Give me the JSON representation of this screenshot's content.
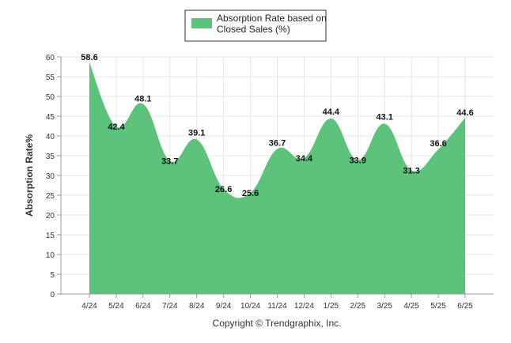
{
  "chart_data": {
    "type": "area",
    "categories": [
      "4/24",
      "5/24",
      "6/24",
      "7/24",
      "8/24",
      "9/24",
      "10/24",
      "11/24",
      "12/24",
      "1/25",
      "2/25",
      "3/25",
      "4/25",
      "5/25",
      "6/25"
    ],
    "series": [
      {
        "name": "Absorption Rate based on Closed Sales (%)",
        "legend_lines": [
          "Absorption Rate based on",
          "Closed Sales (%)"
        ],
        "values": [
          58.6,
          42.4,
          48.1,
          33.7,
          39.1,
          26.6,
          25.6,
          36.7,
          34.4,
          44.4,
          33.9,
          43.1,
          31.3,
          36.6,
          44.6
        ],
        "labels": [
          "58.6",
          "42.4",
          "48.1",
          "33.7",
          "39.1",
          "26.6",
          "25.6",
          "36.7",
          "34.4",
          "44.4",
          "33.9",
          "43.1",
          "31.3",
          "36.6",
          "44.6"
        ]
      }
    ],
    "ylabel": "Absorption Rate%",
    "xlabel": "",
    "ylim": [
      0,
      60
    ],
    "yticks": [
      "0",
      "5",
      "10",
      "15",
      "20",
      "25",
      "30",
      "35",
      "40",
      "45",
      "50",
      "55",
      "60"
    ],
    "grid": true,
    "legend_position": "top-center",
    "colors": {
      "fill": "#5cc27c",
      "grid": "#e6e6e6",
      "legend_border": "#333333"
    }
  },
  "footer": {
    "copyright": "Copyright © Trendgraphix, Inc."
  }
}
